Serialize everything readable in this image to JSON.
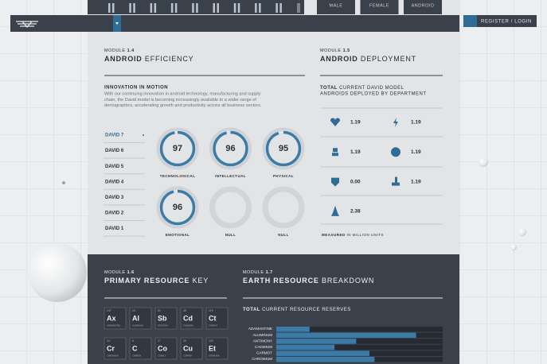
{
  "nav": {
    "genders": [
      "MALE",
      "FEMALE",
      "ANDROID"
    ],
    "login": "REGISTER / LOGIN"
  },
  "efficiency": {
    "module": "MODULE",
    "number": "1.4",
    "title_bold": "ANDROID",
    "title_rest": "EFFICIENCY",
    "heading": "INNOVATION IN MOTION",
    "body_lines": [
      "With our continuing innovation in android technology, manufacturing and supply",
      "chain, the David model is becoming increasingly available to a wider range of",
      "demographics, accelerating growth and productivity across all business sectors."
    ],
    "models": [
      "DAVID 7",
      "DAVID 6",
      "DAVID 5",
      "DAVID 4",
      "DAVID 3",
      "DAVID 2",
      "DAVID 1"
    ],
    "gauge_lim": [
      0,
      100
    ],
    "gauges": [
      {
        "value": 97,
        "label": "TECHNOLOGICAL"
      },
      {
        "value": 96,
        "label": "INTELLECTUAL"
      },
      {
        "value": 95,
        "label": "PHYSICAL"
      },
      {
        "value": 96,
        "label": "EMOTIONAL"
      },
      {
        "value": null,
        "label": "NULL"
      },
      {
        "value": null,
        "label": "NULL"
      }
    ]
  },
  "deployment": {
    "module": "MODULE",
    "number": "1.5",
    "title_bold": "ANDROID",
    "title_rest": "DEPLOYMENT",
    "heading_bold": "TOTAL",
    "heading_rest": "CURRENT DAVID MODEL",
    "heading_line2": "ANDROIDS DEPLOYED BY DEPARTMENT",
    "values": [
      "1.19",
      "1.19",
      "1.19",
      "1.19",
      "0.00",
      "1.19",
      "2.38"
    ],
    "footnote_bold": "MEASURED",
    "footnote_rest": "IN MILLION UNITS"
  },
  "resources": {
    "module": "MODULE",
    "number": "1.6",
    "title_bold": "PRIMARY RESOURCE",
    "title_rest": "KEY",
    "elements": [
      {
        "number": "147",
        "symbol": "Ax",
        "name": "ADAMANTINE"
      },
      {
        "number": "13",
        "symbol": "Al",
        "name": "ALUMINUM"
      },
      {
        "number": "51",
        "symbol": "Sb",
        "name": "ANTIMONY"
      },
      {
        "number": "48",
        "symbol": "Cd",
        "name": "CADMIUM"
      },
      {
        "number": "119",
        "symbol": "Ct",
        "name": "CARMOT"
      },
      {
        "number": "24",
        "symbol": "Cr",
        "name": "CHROMIUM"
      },
      {
        "number": "6",
        "symbol": "C",
        "name": "CARBON"
      },
      {
        "number": "27",
        "symbol": "Co",
        "name": "COBALT"
      },
      {
        "number": "29",
        "symbol": "Cu",
        "name": "COPPER"
      },
      {
        "number": "120",
        "symbol": "Et",
        "name": "ETERNIUM"
      }
    ]
  },
  "chart_data": {
    "type": "bar",
    "module": "MODULE",
    "number": "1.7",
    "title_bold": "EARTH RESOURCE",
    "title_rest": "BREAKDOWN",
    "subtitle_bold": "TOTAL",
    "subtitle_rest": "CURRENT RESOURCE RESERVES",
    "categories": [
      "ADAMANTINE",
      "ALUMINUM",
      "ANTIMONY",
      "CADMIUM",
      "CARMOT",
      "CHROMIUM"
    ],
    "values": [
      20,
      84,
      48,
      35,
      56,
      59
    ],
    "xlim": [
      0,
      100
    ],
    "color": "#3b7ba8"
  }
}
